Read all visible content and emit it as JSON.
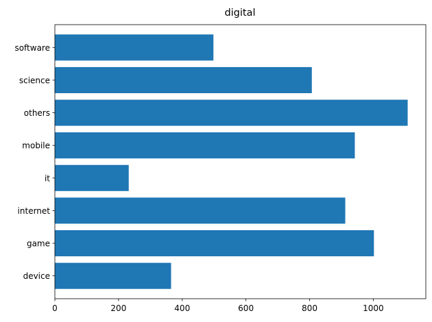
{
  "chart_data": {
    "type": "bar",
    "orientation": "horizontal",
    "title": "digital",
    "xlabel": "",
    "ylabel": "",
    "categories": [
      "device",
      "game",
      "internet",
      "it",
      "mobile",
      "others",
      "science",
      "software"
    ],
    "values": [
      365,
      1002,
      912,
      232,
      942,
      1108,
      807,
      498
    ],
    "xlim": [
      0,
      1165
    ],
    "xticks": [
      0,
      200,
      400,
      600,
      800,
      1000
    ],
    "grid": false,
    "bar_color": "#1f77b4"
  }
}
